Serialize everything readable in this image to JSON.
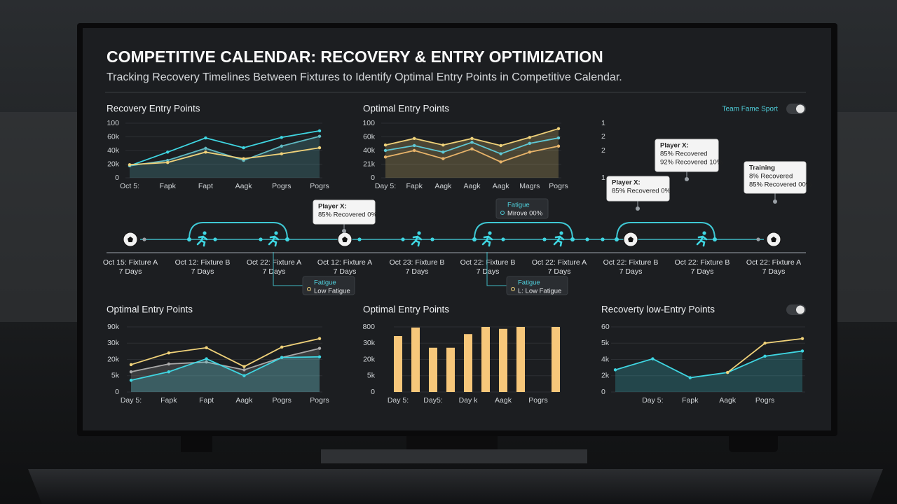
{
  "header": {
    "title": "COMPETITIVE CALENDAR: RECOVERY & ENTRY OPTIMIZATION",
    "subtitle": "Tracking Recovery Timelines Between Fixtures to Identify Optimal Entry Points in Competitive Calendar."
  },
  "toggle_label": "Team Fame Sport",
  "panels": [
    {
      "type": "line",
      "title": "Recovery Entry Points",
      "ylim": [
        0,
        100
      ],
      "ytick_labels": [
        "0",
        "20k",
        "40k",
        "60k",
        "100"
      ],
      "categories": [
        "Oct 5:",
        "Fapk",
        "Fapt",
        "Aagk",
        "Pogrs",
        "Pogrs"
      ],
      "series": [
        {
          "color": "#3fd6e2",
          "values": [
            22,
            47,
            73,
            55,
            74,
            86
          ]
        },
        {
          "color": "#5fb9c2",
          "area": true,
          "values": [
            22,
            32,
            54,
            32,
            58,
            76
          ]
        },
        {
          "color": "#f0d27a",
          "values": [
            24,
            28,
            47,
            35,
            44,
            55
          ]
        }
      ]
    },
    {
      "type": "line",
      "title": "Optimal Entry Points",
      "ylim": [
        0,
        100
      ],
      "ytick_labels": [
        "0",
        "21k",
        "40k",
        "60k",
        "100"
      ],
      "categories": [
        "Day 5:",
        "Fapk",
        "Aagk",
        "Aagk",
        "Aagk",
        "Magrs",
        "Pogrs"
      ],
      "series": [
        {
          "color": "#f0d27a",
          "area": true,
          "values": [
            60,
            72,
            60,
            72,
            59,
            74,
            90
          ]
        },
        {
          "color": "#5fc9d6",
          "values": [
            50,
            59,
            47,
            65,
            44,
            63,
            73
          ]
        },
        {
          "color": "#e8b46a",
          "values": [
            38,
            50,
            35,
            53,
            29,
            47,
            58
          ]
        }
      ]
    },
    {
      "type": "line",
      "title": "Optimal Entry Points",
      "ylim": [
        0,
        100
      ],
      "ytick_labels": [
        "0",
        "5k",
        "20k",
        "30k",
        "90k"
      ],
      "categories": [
        "Day 5:",
        "Fapk",
        "Fapt",
        "Aagk",
        "Pogrs",
        "Pogrs"
      ],
      "series": [
        {
          "color": "#f0d27a",
          "values": [
            42,
            60,
            68,
            39,
            69,
            82
          ]
        },
        {
          "color": "#a9a9a9",
          "area": true,
          "values": [
            31,
            43,
            46,
            34,
            53,
            67
          ]
        },
        {
          "color": "#3fd6e2",
          "area": true,
          "values": [
            18,
            31,
            51,
            25,
            53,
            54
          ]
        }
      ]
    },
    {
      "type": "bar",
      "title": "Optimal Entry Points",
      "ylim": [
        0,
        100
      ],
      "color": "#f7c77a",
      "ytick_labels": [
        "0",
        "5k",
        "20k",
        "30k",
        "800"
      ],
      "categories": [
        "Day 5:",
        null,
        "Day5:",
        null,
        "Day k",
        null,
        "Aagk",
        null,
        "Pogrs",
        null
      ],
      "values": [
        86,
        99,
        68,
        68,
        89,
        100,
        97,
        100,
        null,
        100
      ]
    },
    {
      "type": "line",
      "title": "Recoverty low-Entry Points",
      "ylim": [
        0,
        100
      ],
      "ytick_labels": [
        "0",
        "2k",
        "4k",
        "5k",
        "60"
      ],
      "categories": [
        null,
        "Day 5:",
        "Fapk",
        "Aagk",
        "Pogrs",
        null
      ],
      "series": [
        {
          "color": "#3fd6e2",
          "area": true,
          "values": [
            34,
            51,
            22,
            30,
            55,
            63
          ]
        },
        {
          "color": "#f0d27a",
          "values": [
            null,
            null,
            null,
            30,
            75,
            82
          ]
        }
      ]
    }
  ],
  "side_ticks": [
    "1",
    "2",
    "2",
    "1"
  ],
  "callouts": [
    {
      "lines": [
        "Player X:",
        "85% Recovered",
        "92% Recovered 10%"
      ]
    },
    {
      "lines": [
        "Player X:",
        "85% Recovered 0%"
      ]
    },
    {
      "lines": [
        "Training",
        "8% Recovered",
        "85% Recovered 00%"
      ]
    },
    {
      "lines": [
        "Player X:",
        "85% Recovered 0%"
      ]
    },
    {
      "lines": [
        "Fatigue",
        "Mirove 00%"
      ]
    },
    {
      "lines": [
        "Fatigue",
        "Low Fatigue"
      ]
    },
    {
      "lines": [
        "Fatigue",
        "L: Low Fatigue"
      ]
    }
  ],
  "timeline": [
    {
      "icon": "ball",
      "label": "Oct 15: Fixture A",
      "days": "7 Days"
    },
    {
      "icon": "run",
      "label": "Oct 12: Fixture B",
      "days": "7 Days"
    },
    {
      "icon": "run",
      "label": "Oct 22: Fixture A",
      "days": "7 Days"
    },
    {
      "icon": "ball",
      "label": "Oct 12: Fixture A",
      "days": "7 Days"
    },
    {
      "icon": "run",
      "label": "Oct 23: Fixture B",
      "days": "7 Days"
    },
    {
      "icon": "run",
      "label": "Oct 22: Fixture B",
      "days": "7 Days"
    },
    {
      "icon": "run",
      "label": "Oct 22: Fixture A",
      "days": "7 Days"
    },
    {
      "icon": "ball",
      "label": "Oct 22: Fixture B",
      "days": "7 Days"
    },
    {
      "icon": "run",
      "label": "Oct 22: Fixture B",
      "days": "7 Days"
    },
    {
      "icon": "ball",
      "label": "Oct 22: Fixture A",
      "days": "7 Days"
    }
  ]
}
